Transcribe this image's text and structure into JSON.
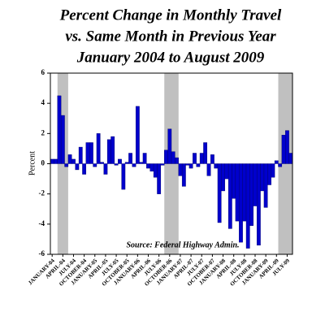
{
  "chart_data": {
    "type": "bar",
    "title": [
      "Percent Change in Monthly Travel",
      "vs. Same Month in Previous Year",
      "January 2004 to August 2009"
    ],
    "y_label": "Percent",
    "annotation": "Source: Federal Highway Admin.",
    "categories": [
      "JANUARY-04",
      null,
      null,
      "APRIL-04",
      null,
      null,
      "JULY-04",
      null,
      null,
      "OCTOBER-04",
      null,
      null,
      "JANUARY-05",
      null,
      null,
      "APRIL-05",
      null,
      null,
      "JULY-05",
      null,
      null,
      "OCTOBER-05",
      null,
      null,
      "JANUARY-06",
      null,
      null,
      "APRIL-06",
      null,
      null,
      "JULY-06",
      null,
      null,
      "OCTOBER-06",
      null,
      null,
      "JANUARY-07",
      null,
      null,
      "APRIL-07",
      null,
      null,
      "JULY-07",
      null,
      null,
      "OCTOBER-07",
      null,
      null,
      "JANUARY-08",
      null,
      null,
      "APRIL-08",
      null,
      null,
      "JULY-08",
      null,
      null,
      "OCTOBER-08",
      null,
      null,
      "JANUARY-09",
      null,
      null,
      "APRIL-09",
      null,
      null,
      "JULY-09",
      null
    ],
    "values": [
      0.3,
      0.3,
      4.5,
      3.2,
      -0.2,
      0.6,
      0.3,
      -0.4,
      1.1,
      -0.7,
      1.4,
      1.4,
      -0.2,
      2.0,
      0.1,
      -0.7,
      1.6,
      1.8,
      -0.1,
      0.3,
      -1.7,
      0.1,
      0.7,
      -0.2,
      3.8,
      0.1,
      0.7,
      -0.3,
      -0.5,
      -0.9,
      -2.0,
      -0.1,
      0.9,
      2.3,
      0.8,
      0.4,
      -0.8,
      -1.5,
      -0.1,
      -0.3,
      0.7,
      -0.2,
      0.7,
      1.4,
      -0.8,
      0.6,
      -0.3,
      -3.9,
      -1.8,
      -1.0,
      -4.3,
      -2.3,
      -3.8,
      -5.2,
      -3.8,
      -5.6,
      -4.1,
      -2.8,
      -5.4,
      -1.8,
      -2.9,
      -1.4,
      -0.9,
      0.2,
      -0.2,
      1.9,
      2.2,
      0.7
    ],
    "color": "#0000cc",
    "shaded_months": [
      [
        2,
        4
      ],
      [
        32,
        35
      ],
      [
        64,
        67
      ]
    ],
    "shade_color": "#c0c0c0",
    "ylim": [
      -6,
      6
    ],
    "yticks": [
      -6,
      -4,
      -2,
      0,
      2,
      4,
      6
    ],
    "grid": false
  }
}
